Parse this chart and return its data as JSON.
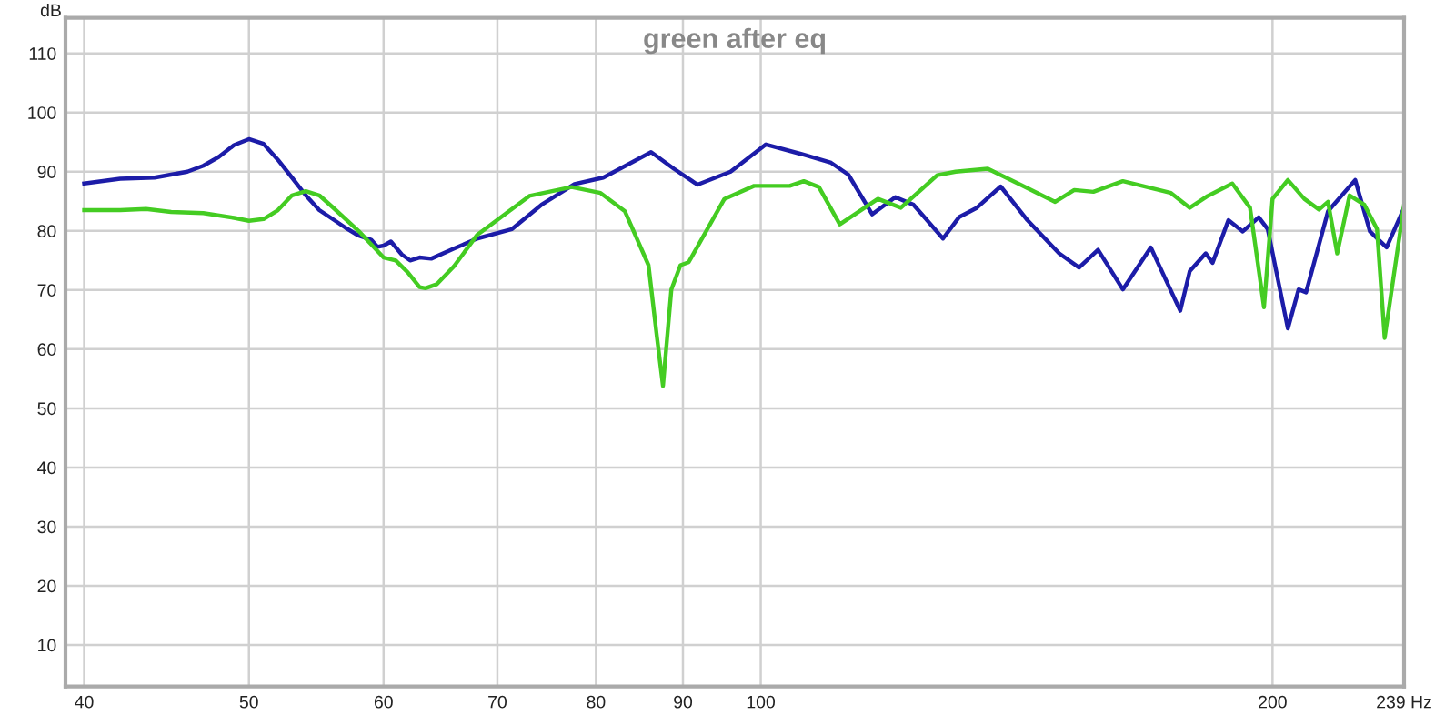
{
  "chart_data": {
    "type": "line",
    "title": "green after eq",
    "ylabel": "dB",
    "log": "x",
    "grid": true,
    "line_style": "solid",
    "marker": "none",
    "xlim": [
      39,
      239
    ],
    "ylim": [
      3,
      116
    ],
    "xticks": [
      40,
      50,
      60,
      70,
      80,
      90,
      100,
      200,
      {
        "value": 239,
        "label": "239 Hz"
      }
    ],
    "yticks": [
      10,
      20,
      30,
      40,
      50,
      60,
      70,
      80,
      90,
      100,
      110
    ],
    "series": [
      {
        "color": "#1c1ca8",
        "x": [
          40,
          42,
          44,
          46,
          47,
          48,
          49,
          50,
          51,
          52,
          53,
          54,
          55,
          56,
          57,
          58,
          59,
          59.5,
          60,
          60.6,
          61.5,
          62.2,
          63,
          64,
          66,
          68.1,
          71.4,
          74.3,
          77.7,
          80.8,
          86.2,
          88.9,
          91.8,
          96,
          100.7,
          105.6,
          110,
          112.6,
          116.3,
          120,
          123,
          128,
          130.8,
          134,
          138.4,
          143.5,
          149.8,
          153.9,
          157.9,
          163.3,
          169.6,
          176.5,
          178.8,
          182.7,
          184.4,
          188.4,
          192.1,
          196.3,
          198.7,
          204.2,
          207.2,
          209.3,
          215.6,
          223.7,
          228.2,
          233.4,
          239
        ],
        "values": [
          88,
          88.8,
          89,
          90,
          91,
          92.5,
          94.5,
          95.5,
          94.7,
          92,
          89,
          86,
          83.5,
          82,
          80.5,
          79.2,
          78.5,
          77.3,
          77.5,
          78.2,
          76,
          75,
          75.5,
          75.3,
          77,
          78.7,
          80.3,
          84.4,
          87.9,
          89,
          93.3,
          90.5,
          87.8,
          90,
          94.6,
          93,
          91.5,
          89.5,
          82.8,
          85.7,
          84.4,
          78.7,
          82.3,
          83.9,
          87.5,
          81.8,
          76.2,
          73.8,
          76.8,
          70.1,
          77.2,
          66.5,
          73.2,
          76.2,
          74.6,
          81.8,
          79.9,
          82.3,
          80.3,
          63.5,
          70.1,
          69.6,
          83.3,
          88.6,
          79.9,
          77.2,
          83.9
        ]
      },
      {
        "color": "#44cc22",
        "x": [
          40,
          42,
          43.5,
          45,
          47,
          49,
          50,
          51,
          52,
          53,
          54,
          55,
          56,
          58,
          60,
          61,
          62,
          63,
          63.5,
          64.5,
          66,
          68.1,
          73.1,
          77.4,
          80.5,
          83.2,
          85.9,
          86.9,
          87.6,
          88.6,
          89.7,
          90.7,
          95.2,
          99.1,
          104,
          106,
          108.2,
          111.3,
          117.2,
          120.9,
          127,
          130.2,
          136,
          141.7,
          149,
          152.9,
          156.9,
          163.3,
          174.3,
          178.8,
          183.2,
          189.4,
          194,
          197.7,
          200,
          204.2,
          208.8,
          213,
          215.6,
          218.3,
          222,
          226.5,
          230.4,
          232.8,
          239
        ],
        "values": [
          83.5,
          83.5,
          83.7,
          83.2,
          83,
          82.2,
          81.7,
          82,
          83.5,
          86,
          86.7,
          86,
          84,
          80,
          75.5,
          75,
          73,
          70.5,
          70.3,
          71,
          74,
          79.3,
          85.9,
          87.4,
          86.4,
          83.3,
          74.2,
          61.9,
          53.8,
          70.1,
          74.2,
          74.7,
          85.4,
          87.6,
          87.6,
          88.4,
          87.4,
          81.1,
          85.4,
          83.9,
          89.4,
          90,
          90.5,
          88,
          84.9,
          86.9,
          86.6,
          88.4,
          86.4,
          83.9,
          85.9,
          88,
          83.9,
          67.1,
          85.4,
          88.6,
          85.4,
          83.6,
          84.9,
          76.2,
          86,
          84.4,
          80.3,
          61.9,
          84.4
        ]
      }
    ]
  }
}
